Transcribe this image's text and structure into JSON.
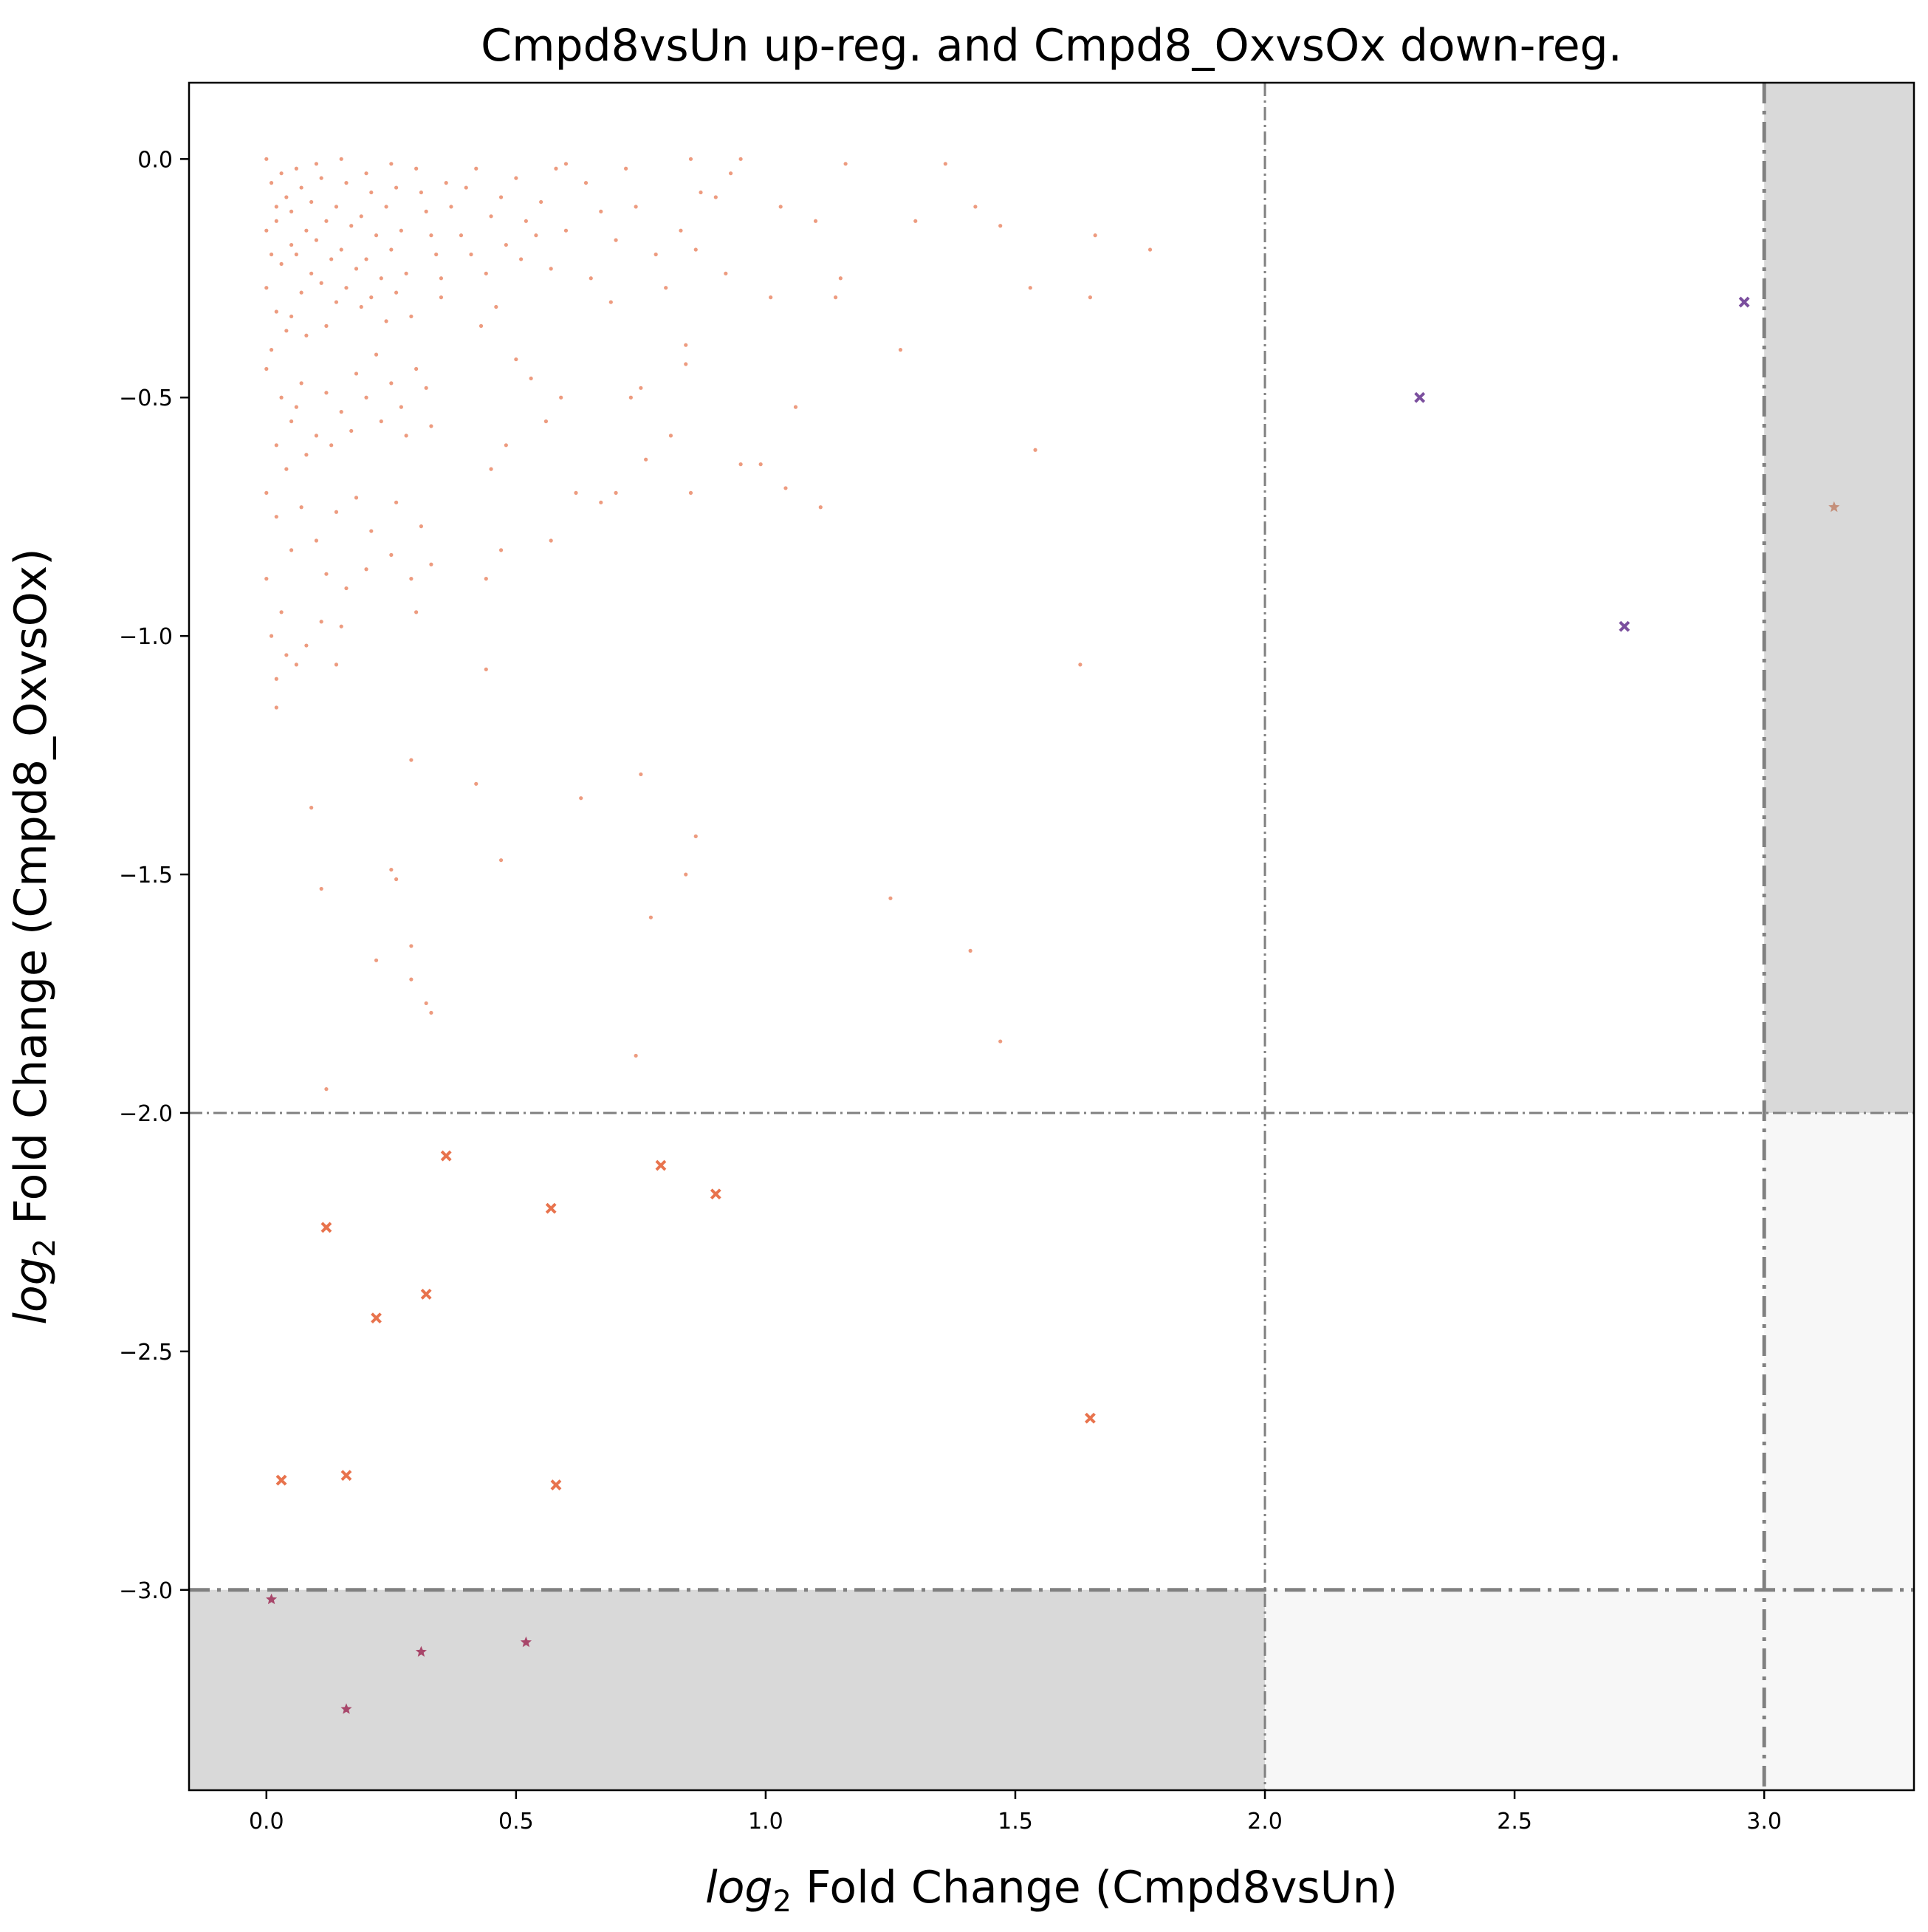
{
  "chart_data": {
    "type": "scatter",
    "title": "Cmpd8vsUn up-reg. and Cmpd8_OxvsOx down-reg.",
    "xlabel": {
      "italic": "log",
      "sub": "2",
      "rest": " Fold Change (Cmpd8vsUn)"
    },
    "ylabel": {
      "italic": "log",
      "sub": "2",
      "rest": " Fold Change (Cmpd8_OxvsOx)"
    },
    "xlim": [
      -0.155,
      3.3
    ],
    "ylim": [
      -3.42,
      0.16
    ],
    "xticks": [
      0.0,
      0.5,
      1.0,
      1.5,
      2.0,
      2.5,
      3.0
    ],
    "xtick_labels": [
      "0.0",
      "0.5",
      "1.0",
      "1.5",
      "2.0",
      "2.5",
      "3.0"
    ],
    "yticks": [
      0.0,
      -0.5,
      -1.0,
      -1.5,
      -2.0,
      -2.5,
      -3.0
    ],
    "ytick_labels": [
      "0.0",
      "−0.5",
      "−1.0",
      "−1.5",
      "−2.0",
      "−2.5",
      "−3.0"
    ],
    "grid": false,
    "legend": "none",
    "threshold_lines": {
      "x_inner": 2.0,
      "x_outer": 3.0,
      "y_inner": -2.0,
      "y_outer": -3.0,
      "color": "#808080"
    },
    "shaded_regions": [
      {
        "x": [
          3.0,
          3.3
        ],
        "y": [
          -2.0,
          0.16
        ],
        "color": "#d9d9d9"
      },
      {
        "x": [
          -0.155,
          2.0
        ],
        "y": [
          -3.42,
          -3.0
        ],
        "color": "#d9d9d9"
      },
      {
        "x": [
          3.0,
          3.3
        ],
        "y": [
          -3.0,
          -2.0
        ],
        "color": "#f7f7f7"
      },
      {
        "x": [
          2.0,
          3.3
        ],
        "y": [
          -3.42,
          -3.0
        ],
        "color": "#f7f7f7"
      }
    ],
    "series": [
      {
        "marker": "dot",
        "color": "#e8825f",
        "points": [
          [
            0.0,
            -0.0
          ],
          [
            0.01,
            -0.05
          ],
          [
            0.02,
            -0.1
          ],
          [
            0.0,
            -0.15
          ],
          [
            0.01,
            -0.2
          ],
          [
            0.03,
            -0.03
          ],
          [
            0.04,
            -0.08
          ],
          [
            0.02,
            -0.13
          ],
          [
            0.05,
            -0.18
          ],
          [
            0.03,
            -0.22
          ],
          [
            0.0,
            -0.27
          ],
          [
            0.02,
            -0.32
          ],
          [
            0.04,
            -0.36
          ],
          [
            0.01,
            -0.4
          ],
          [
            0.0,
            -0.44
          ],
          [
            0.06,
            -0.02
          ],
          [
            0.07,
            -0.06
          ],
          [
            0.05,
            -0.11
          ],
          [
            0.08,
            -0.15
          ],
          [
            0.06,
            -0.2
          ],
          [
            0.09,
            -0.24
          ],
          [
            0.07,
            -0.28
          ],
          [
            0.05,
            -0.33
          ],
          [
            0.08,
            -0.37
          ],
          [
            0.1,
            -0.01
          ],
          [
            0.11,
            -0.04
          ],
          [
            0.09,
            -0.09
          ],
          [
            0.12,
            -0.13
          ],
          [
            0.1,
            -0.17
          ],
          [
            0.13,
            -0.21
          ],
          [
            0.11,
            -0.26
          ],
          [
            0.14,
            -0.3
          ],
          [
            0.12,
            -0.35
          ],
          [
            0.15,
            -0.0
          ],
          [
            0.16,
            -0.05
          ],
          [
            0.14,
            -0.1
          ],
          [
            0.17,
            -0.14
          ],
          [
            0.15,
            -0.19
          ],
          [
            0.18,
            -0.23
          ],
          [
            0.16,
            -0.27
          ],
          [
            0.19,
            -0.31
          ],
          [
            0.2,
            -0.03
          ],
          [
            0.21,
            -0.07
          ],
          [
            0.19,
            -0.12
          ],
          [
            0.22,
            -0.16
          ],
          [
            0.2,
            -0.21
          ],
          [
            0.23,
            -0.25
          ],
          [
            0.21,
            -0.29
          ],
          [
            0.24,
            -0.34
          ],
          [
            0.25,
            -0.01
          ],
          [
            0.26,
            -0.06
          ],
          [
            0.24,
            -0.1
          ],
          [
            0.27,
            -0.15
          ],
          [
            0.25,
            -0.19
          ],
          [
            0.28,
            -0.24
          ],
          [
            0.26,
            -0.28
          ],
          [
            0.29,
            -0.33
          ],
          [
            0.3,
            -0.02
          ],
          [
            0.31,
            -0.07
          ],
          [
            0.32,
            -0.11
          ],
          [
            0.33,
            -0.16
          ],
          [
            0.34,
            -0.2
          ],
          [
            0.35,
            -0.25
          ],
          [
            0.36,
            -0.05
          ],
          [
            0.37,
            -0.1
          ],
          [
            0.39,
            -0.16
          ],
          [
            0.35,
            -0.29
          ],
          [
            0.03,
            -0.5
          ],
          [
            0.05,
            -0.55
          ],
          [
            0.02,
            -0.6
          ],
          [
            0.07,
            -0.47
          ],
          [
            0.1,
            -0.58
          ],
          [
            0.04,
            -0.65
          ],
          [
            0.06,
            -0.52
          ],
          [
            0.12,
            -0.49
          ],
          [
            0.0,
            -0.7
          ],
          [
            0.15,
            -0.53
          ],
          [
            0.18,
            -0.45
          ],
          [
            0.2,
            -0.5
          ],
          [
            0.22,
            -0.41
          ],
          [
            0.25,
            -0.47
          ],
          [
            0.27,
            -0.52
          ],
          [
            0.3,
            -0.44
          ],
          [
            0.32,
            -0.48
          ],
          [
            0.13,
            -0.6
          ],
          [
            0.08,
            -0.62
          ],
          [
            0.17,
            -0.57
          ],
          [
            0.23,
            -0.55
          ],
          [
            0.28,
            -0.58
          ],
          [
            0.33,
            -0.56
          ],
          [
            0.02,
            -0.75
          ],
          [
            0.05,
            -0.82
          ],
          [
            0.0,
            -0.88
          ],
          [
            0.03,
            -0.95
          ],
          [
            0.07,
            -0.73
          ],
          [
            0.1,
            -0.8
          ],
          [
            0.14,
            -0.74
          ],
          [
            0.18,
            -0.71
          ],
          [
            0.21,
            -0.78
          ],
          [
            0.26,
            -0.72
          ],
          [
            0.31,
            -0.77
          ],
          [
            0.12,
            -0.87
          ],
          [
            0.16,
            -0.9
          ],
          [
            0.2,
            -0.86
          ],
          [
            0.25,
            -0.83
          ],
          [
            0.29,
            -0.88
          ],
          [
            0.33,
            -0.85
          ],
          [
            0.01,
            -1.0
          ],
          [
            0.04,
            -1.04
          ],
          [
            0.08,
            -1.02
          ],
          [
            0.11,
            -0.97
          ],
          [
            0.15,
            -0.98
          ],
          [
            0.02,
            -1.09
          ],
          [
            0.06,
            -1.06
          ],
          [
            0.14,
            -1.06
          ],
          [
            0.3,
            -0.95
          ],
          [
            0.02,
            -1.15
          ],
          [
            0.09,
            -1.36
          ],
          [
            0.11,
            -1.53
          ],
          [
            0.25,
            -1.49
          ],
          [
            0.26,
            -1.51
          ],
          [
            0.29,
            -1.26
          ],
          [
            0.22,
            -1.68
          ],
          [
            0.29,
            -1.65
          ],
          [
            0.29,
            -1.72
          ],
          [
            0.32,
            -1.77
          ],
          [
            0.33,
            -1.79
          ],
          [
            0.12,
            -1.95
          ],
          [
            0.4,
            -0.06
          ],
          [
            0.42,
            -0.02
          ],
          [
            0.45,
            -0.12
          ],
          [
            0.47,
            -0.08
          ],
          [
            0.5,
            -0.04
          ],
          [
            0.52,
            -0.13
          ],
          [
            0.55,
            -0.09
          ],
          [
            0.58,
            -0.02
          ],
          [
            0.6,
            -0.01
          ],
          [
            0.41,
            -0.2
          ],
          [
            0.44,
            -0.24
          ],
          [
            0.48,
            -0.18
          ],
          [
            0.51,
            -0.21
          ],
          [
            0.54,
            -0.16
          ],
          [
            0.57,
            -0.23
          ],
          [
            0.6,
            -0.15
          ],
          [
            0.43,
            -0.35
          ],
          [
            0.46,
            -0.31
          ],
          [
            0.5,
            -0.42
          ],
          [
            0.53,
            -0.46
          ],
          [
            0.56,
            -0.55
          ],
          [
            0.59,
            -0.5
          ],
          [
            0.62,
            -0.7
          ],
          [
            0.45,
            -0.65
          ],
          [
            0.48,
            -0.6
          ],
          [
            0.44,
            -0.88
          ],
          [
            0.47,
            -0.82
          ],
          [
            0.57,
            -0.8
          ],
          [
            0.44,
            -1.07
          ],
          [
            0.42,
            -1.31
          ],
          [
            0.47,
            -1.47
          ],
          [
            0.63,
            -1.34
          ],
          [
            0.64,
            -0.05
          ],
          [
            0.67,
            -0.11
          ],
          [
            0.7,
            -0.17
          ],
          [
            0.72,
            -0.02
          ],
          [
            0.74,
            -0.1
          ],
          [
            0.78,
            -0.2
          ],
          [
            0.8,
            -0.27
          ],
          [
            0.83,
            -0.15
          ],
          [
            0.85,
            -0.0
          ],
          [
            0.87,
            -0.07
          ],
          [
            0.65,
            -0.25
          ],
          [
            0.69,
            -0.3
          ],
          [
            0.73,
            -0.5
          ],
          [
            0.75,
            -0.48
          ],
          [
            0.81,
            -0.58
          ],
          [
            0.84,
            -0.39
          ],
          [
            0.86,
            -0.19
          ],
          [
            0.67,
            -0.72
          ],
          [
            0.7,
            -0.7
          ],
          [
            0.76,
            -0.63
          ],
          [
            0.85,
            -0.7
          ],
          [
            0.84,
            -0.43
          ],
          [
            0.75,
            -1.29
          ],
          [
            0.77,
            -1.59
          ],
          [
            0.74,
            -1.88
          ],
          [
            0.84,
            -1.5
          ],
          [
            0.86,
            -1.42
          ],
          [
            0.9,
            -0.08
          ],
          [
            0.93,
            -0.03
          ],
          [
            0.95,
            -0.0
          ],
          [
            0.92,
            -0.24
          ],
          [
            0.95,
            -0.64
          ],
          [
            0.99,
            -0.64
          ],
          [
            1.01,
            -0.29
          ],
          [
            1.03,
            -0.1
          ],
          [
            1.04,
            -0.69
          ],
          [
            1.06,
            -0.52
          ],
          [
            1.1,
            -0.13
          ],
          [
            1.11,
            -0.73
          ],
          [
            1.14,
            -0.29
          ],
          [
            1.15,
            -0.25
          ],
          [
            1.16,
            -0.01
          ],
          [
            1.25,
            -1.55
          ],
          [
            1.27,
            -0.4
          ],
          [
            1.3,
            -0.13
          ],
          [
            1.36,
            -0.01
          ],
          [
            1.41,
            -1.66
          ],
          [
            1.42,
            -0.1
          ],
          [
            1.47,
            -0.14
          ],
          [
            1.47,
            -1.85
          ],
          [
            1.53,
            -0.27
          ],
          [
            1.54,
            -0.61
          ],
          [
            1.63,
            -1.06
          ],
          [
            1.65,
            -0.29
          ],
          [
            1.66,
            -0.16
          ],
          [
            1.77,
            -0.19
          ]
        ]
      },
      {
        "marker": "x",
        "color": "#e8734d",
        "points": [
          [
            0.36,
            -2.09
          ],
          [
            0.79,
            -2.11
          ],
          [
            0.9,
            -2.17
          ],
          [
            0.57,
            -2.2
          ],
          [
            0.12,
            -2.24
          ],
          [
            0.32,
            -2.38
          ],
          [
            0.22,
            -2.43
          ],
          [
            1.65,
            -2.64
          ],
          [
            0.16,
            -2.76
          ],
          [
            0.03,
            -2.77
          ],
          [
            0.58,
            -2.78
          ]
        ]
      },
      {
        "marker": "x",
        "color": "#7b4f9e",
        "points": [
          [
            2.96,
            -0.3
          ],
          [
            2.31,
            -0.5
          ],
          [
            2.72,
            -0.98
          ]
        ]
      },
      {
        "marker": "star",
        "color": "#c48f7a",
        "points": [
          [
            3.14,
            -0.73
          ]
        ]
      },
      {
        "marker": "star",
        "color": "#a8466a",
        "points": [
          [
            0.01,
            -3.02
          ],
          [
            0.31,
            -3.13
          ],
          [
            0.52,
            -3.11
          ],
          [
            0.16,
            -3.25
          ]
        ]
      }
    ]
  }
}
